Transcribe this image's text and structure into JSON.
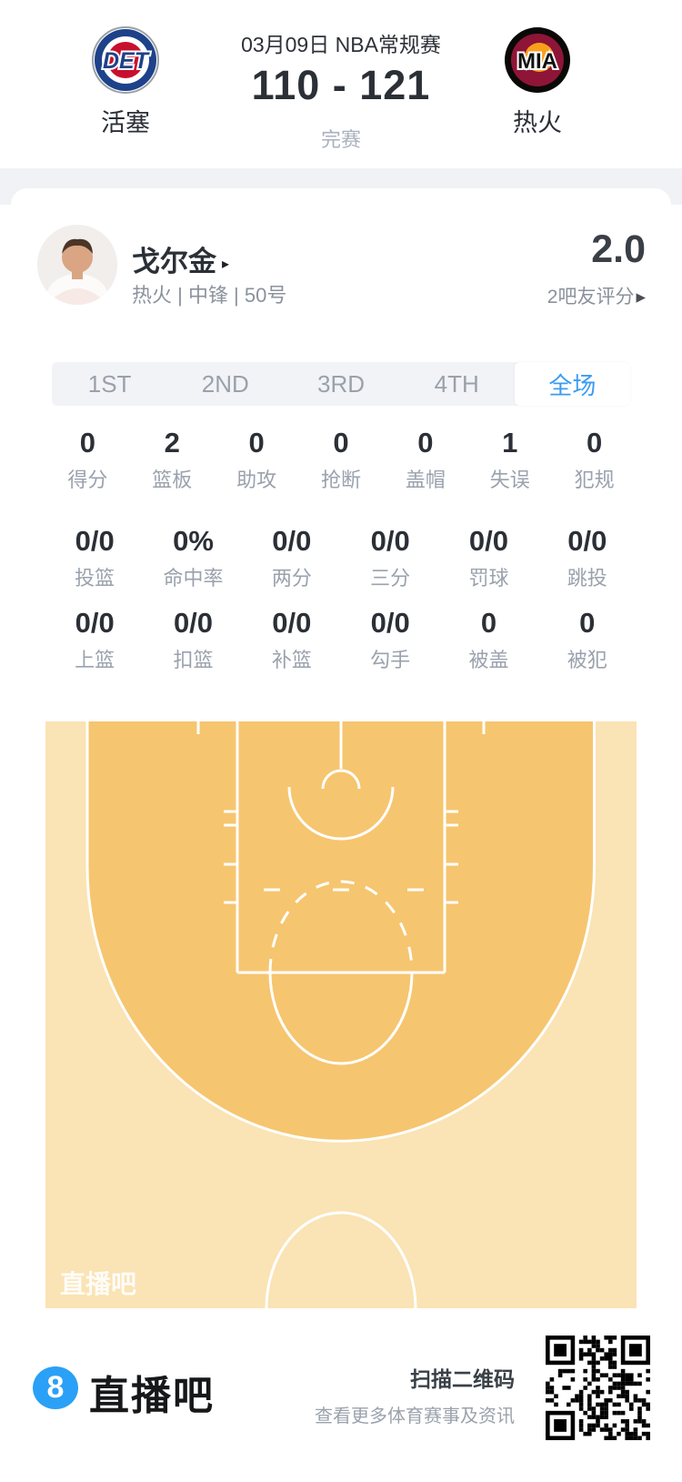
{
  "header": {
    "date_title": "03月09日 NBA常规赛",
    "score": "110 - 121",
    "status": "完赛",
    "home": {
      "abbr": "DET",
      "name": "活塞"
    },
    "away": {
      "abbr": "MIA",
      "name": "热火"
    }
  },
  "player": {
    "name": "戈尔金",
    "name_arrow": "▸",
    "meta": "热火 | 中锋 | 50号",
    "rating": "2.0",
    "rating_caption": "2吧友评分",
    "rating_arrow": "▸"
  },
  "tabs": [
    {
      "label": "1ST",
      "active": false
    },
    {
      "label": "2ND",
      "active": false
    },
    {
      "label": "3RD",
      "active": false
    },
    {
      "label": "4TH",
      "active": false
    },
    {
      "label": "全场",
      "active": true
    }
  ],
  "stats_rows": [
    [
      {
        "value": "0",
        "label": "得分"
      },
      {
        "value": "2",
        "label": "篮板"
      },
      {
        "value": "0",
        "label": "助攻"
      },
      {
        "value": "0",
        "label": "抢断"
      },
      {
        "value": "0",
        "label": "盖帽"
      },
      {
        "value": "1",
        "label": "失误"
      },
      {
        "value": "0",
        "label": "犯规"
      }
    ],
    [
      {
        "value": "0/0",
        "label": "投篮"
      },
      {
        "value": "0%",
        "label": "命中率"
      },
      {
        "value": "0/0",
        "label": "两分"
      },
      {
        "value": "0/0",
        "label": "三分"
      },
      {
        "value": "0/0",
        "label": "罚球"
      },
      {
        "value": "0/0",
        "label": "跳投"
      }
    ],
    [
      {
        "value": "0/0",
        "label": "上篮"
      },
      {
        "value": "0/0",
        "label": "扣篮"
      },
      {
        "value": "0/0",
        "label": "补篮"
      },
      {
        "value": "0/0",
        "label": "勾手"
      },
      {
        "value": "0",
        "label": "被盖"
      },
      {
        "value": "0",
        "label": "被犯"
      }
    ]
  ],
  "court": {
    "watermark": "直播吧",
    "colors": {
      "inner": "#f6c56f",
      "outer": "#fae3b4",
      "line": "#ffffff"
    }
  },
  "footer": {
    "brand_badge": "8",
    "brand": "直播吧",
    "qr_title": "扫描二维码",
    "qr_subtitle": "查看更多体育赛事及资讯"
  },
  "colors": {
    "accent_blue": "#3b9cf1",
    "pistons_blue": "#1d428a",
    "pistons_red": "#c8102e",
    "heat_maroon": "#8e1537",
    "heat_orange": "#f9a01b",
    "footer_blue": "#2aa0f7"
  }
}
